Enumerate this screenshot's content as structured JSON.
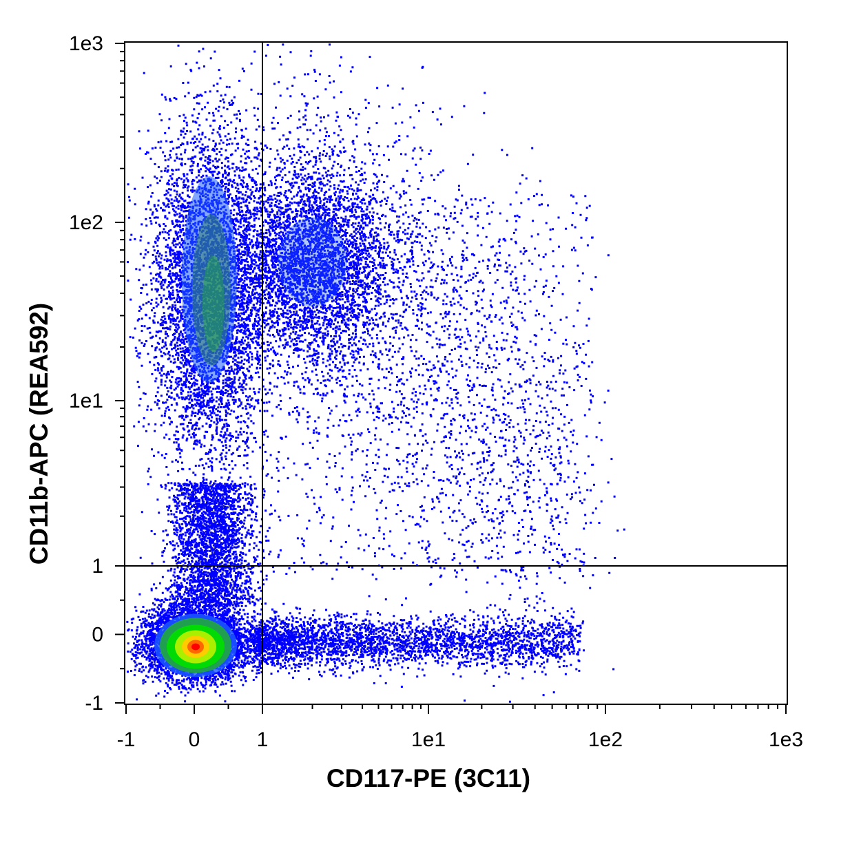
{
  "chart_data": {
    "type": "scatter",
    "subtype": "flow-cytometry-density-dot-plot",
    "title": "",
    "xlabel": "CD117-PE (3C11)",
    "ylabel": "CD11b-APC (REA592)",
    "x_scale": "biexponential (linear near zero, log above 1)",
    "y_scale": "biexponential (linear near zero, log above 1)",
    "xlim": [
      -1,
      1000
    ],
    "ylim": [
      -1,
      1000
    ],
    "x_ticks": [
      {
        "value": -1,
        "label": "-1"
      },
      {
        "value": 0,
        "label": "0"
      },
      {
        "value": 1,
        "label": "1"
      },
      {
        "value": 10,
        "label": "1e1"
      },
      {
        "value": 100,
        "label": "1e2"
      },
      {
        "value": 1000,
        "label": "1e3"
      }
    ],
    "y_ticks": [
      {
        "value": -1,
        "label": "-1"
      },
      {
        "value": 0,
        "label": "0"
      },
      {
        "value": 1,
        "label": "1"
      },
      {
        "value": 10,
        "label": "1e1"
      },
      {
        "value": 100,
        "label": "1e2"
      },
      {
        "value": 1000,
        "label": "1e3"
      }
    ],
    "quadrant_gates": {
      "x": 1,
      "y": 1
    },
    "grid": false,
    "legend": "none",
    "color_scale": [
      "#0000ff",
      "#1e5cff",
      "#2f7f6e",
      "#21a83d",
      "#00dd00",
      "#aaee00",
      "#ffcc00",
      "#ff6600",
      "#ff0000"
    ],
    "populations": [
      {
        "id": "double-negative",
        "x_center": 0.0,
        "y_center": -0.1,
        "density": "highest (red core)"
      },
      {
        "id": "cd11b-positive-cd117-negative",
        "x_center": 0.2,
        "y_center": 40,
        "density": "high (blue-green)"
      },
      {
        "id": "cd11b-positive-cd117-low",
        "x_center": 2,
        "y_center": 60,
        "density": "medium (blue)"
      },
      {
        "id": "cd117-positive-cd11b-negative",
        "x_center": 8,
        "y_center": -0.1,
        "density": "low (sparse blue)"
      }
    ]
  }
}
